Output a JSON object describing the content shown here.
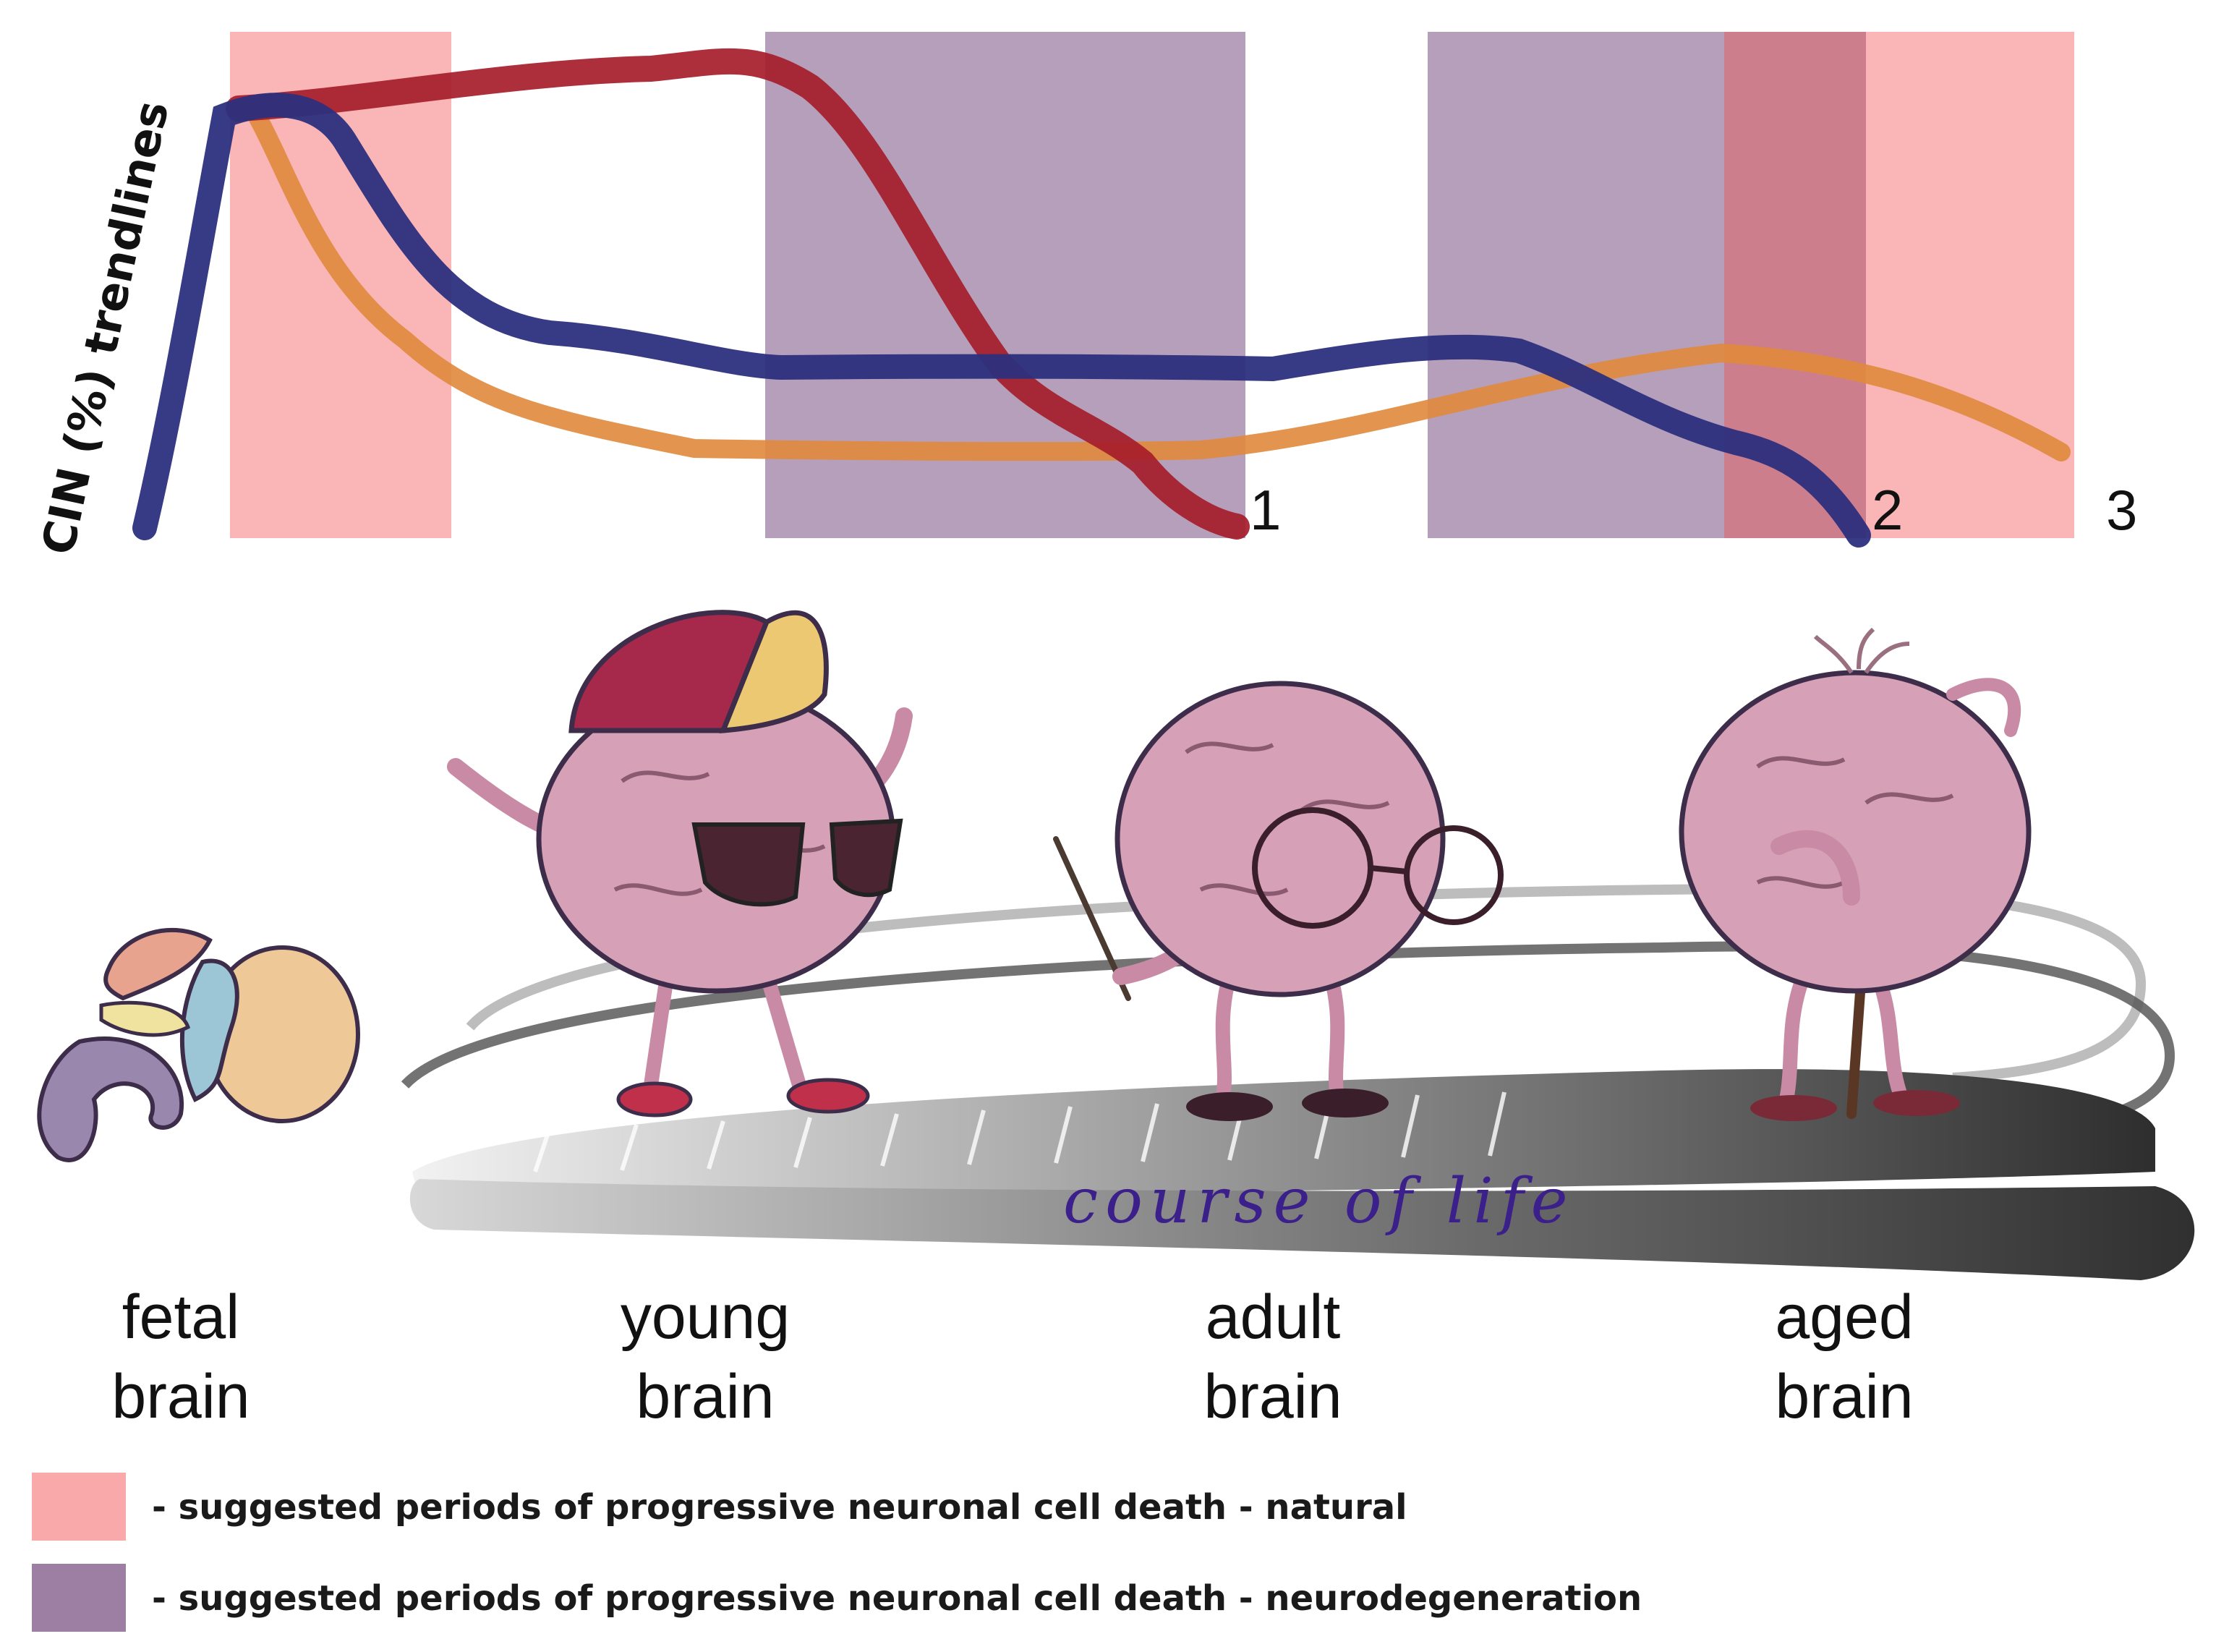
{
  "chart": {
    "y_axis_label": "CIN (%) trendlines",
    "line_end_labels": [
      "1",
      "2",
      "3"
    ],
    "lines": [
      {
        "id": "red",
        "color": "#a51d2a",
        "end_label": "1"
      },
      {
        "id": "navy",
        "color": "#2c2f7d",
        "end_label": "2"
      },
      {
        "id": "orange",
        "color": "#e08a3c",
        "end_label": "3"
      }
    ],
    "shaded_periods": [
      {
        "type": "natural",
        "stage": "fetal-early"
      },
      {
        "type": "neurodegeneration",
        "stage": "young-adult"
      },
      {
        "type": "neurodegeneration",
        "stage": "adult-aged"
      },
      {
        "type": "natural",
        "stage": "aged"
      }
    ]
  },
  "colors": {
    "natural": "#f9a9aa",
    "neurodegeneration": "#9d7fa3",
    "brain_pink": "#d6a0b6",
    "timeline": "#6a6a6a",
    "course_text": "#3b1f8a"
  },
  "course_of_life": "course of life",
  "stages": [
    {
      "line1": "fetal",
      "line2": "brain"
    },
    {
      "line1": "young",
      "line2": "brain"
    },
    {
      "line1": "adult",
      "line2": "brain"
    },
    {
      "line1": "aged",
      "line2": "brain"
    }
  ],
  "legend": {
    "natural": "- suggested periods of progressive neuronal cell death - natural",
    "neurodegeneration": "- suggested periods of progressive neuronal cell death - neurodegeneration"
  },
  "icons": [
    "fetal-brain-icon",
    "young-brain-character-icon",
    "adult-brain-character-icon",
    "aged-brain-character-icon"
  ]
}
